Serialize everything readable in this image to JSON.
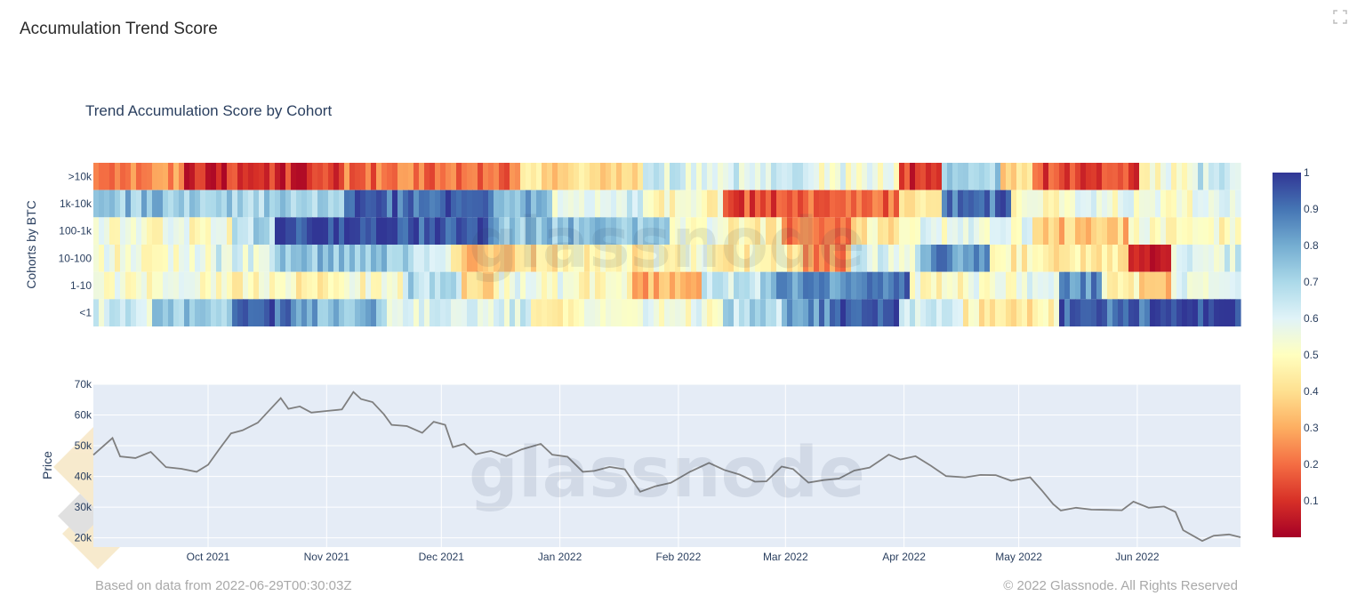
{
  "page": {
    "title": "Accumulation Trend Score",
    "footer_left": "Based on data from 2022-06-29T00:30:03Z",
    "footer_right": "© 2022 Glassnode. All Rights Reserved",
    "watermark": "glassnode",
    "expand_icon": "expand-icon"
  },
  "colors": {
    "panel_bg": "#e5ecf6",
    "grid": "#ffffff",
    "price_line": "#7f7f7f",
    "colorscale": [
      "#a50026",
      "#d73027",
      "#f46d43",
      "#fdae61",
      "#fee090",
      "#ffffbf",
      "#e0f3f8",
      "#abd9e9",
      "#74add1",
      "#4575b4",
      "#313695"
    ],
    "logo_diamonds": "#f5deb3"
  },
  "chart_data": [
    {
      "type": "heatmap",
      "title": "Trend Accumulation Score by Cohort",
      "ylabel": "Cohorts by BTC",
      "rows": [
        ">10k",
        "1k-10k",
        "100-1k",
        "10-100",
        "1-10",
        "<1"
      ],
      "x_start": "2021-09-01",
      "x_end": "2022-06-28",
      "zmin": 0,
      "zmax": 1,
      "colorbar_ticks": [
        "1",
        "0.9",
        "0.8",
        "0.7",
        "0.6",
        "0.5",
        "0.4",
        "0.3",
        "0.2",
        "0.1"
      ],
      "segments": [
        [
          [
            0.08,
            0.25
          ],
          [
            0.22,
            0.1
          ],
          [
            0.37,
            0.2
          ],
          [
            0.48,
            0.4
          ],
          [
            0.62,
            0.6
          ],
          [
            0.7,
            0.55
          ],
          [
            0.74,
            0.1
          ],
          [
            0.79,
            0.7
          ],
          [
            0.82,
            0.4
          ],
          [
            0.91,
            0.15
          ],
          [
            0.96,
            0.52
          ],
          [
            1.0,
            0.65
          ]
        ],
        [
          [
            0.1,
            0.75
          ],
          [
            0.22,
            0.7
          ],
          [
            0.35,
            0.92
          ],
          [
            0.4,
            0.8
          ],
          [
            0.48,
            0.6
          ],
          [
            0.55,
            0.5
          ],
          [
            0.62,
            0.15
          ],
          [
            0.7,
            0.2
          ],
          [
            0.74,
            0.4
          ],
          [
            0.8,
            0.9
          ],
          [
            0.85,
            0.5
          ],
          [
            1.0,
            0.55
          ]
        ],
        [
          [
            0.12,
            0.52
          ],
          [
            0.16,
            0.7
          ],
          [
            0.28,
            0.98
          ],
          [
            0.35,
            0.95
          ],
          [
            0.43,
            0.75
          ],
          [
            0.5,
            0.75
          ],
          [
            0.55,
            0.55
          ],
          [
            0.6,
            0.45
          ],
          [
            0.66,
            0.2
          ],
          [
            0.72,
            0.45
          ],
          [
            0.82,
            0.55
          ],
          [
            0.9,
            0.35
          ],
          [
            1.0,
            0.5
          ]
        ],
        [
          [
            0.1,
            0.52
          ],
          [
            0.16,
            0.6
          ],
          [
            0.28,
            0.75
          ],
          [
            0.31,
            0.6
          ],
          [
            0.36,
            0.35
          ],
          [
            0.4,
            0.4
          ],
          [
            0.48,
            0.45
          ],
          [
            0.55,
            0.5
          ],
          [
            0.62,
            0.45
          ],
          [
            0.66,
            0.25
          ],
          [
            0.72,
            0.6
          ],
          [
            0.78,
            0.85
          ],
          [
            0.9,
            0.45
          ],
          [
            0.94,
            0.1
          ],
          [
            1.0,
            0.6
          ]
        ],
        [
          [
            0.12,
            0.52
          ],
          [
            0.22,
            0.48
          ],
          [
            0.27,
            0.5
          ],
          [
            0.32,
            0.7
          ],
          [
            0.35,
            0.35
          ],
          [
            0.42,
            0.55
          ],
          [
            0.47,
            0.5
          ],
          [
            0.53,
            0.3
          ],
          [
            0.58,
            0.65
          ],
          [
            0.62,
            0.8
          ],
          [
            0.68,
            0.85
          ],
          [
            0.71,
            0.92
          ],
          [
            0.76,
            0.5
          ],
          [
            0.84,
            0.55
          ],
          [
            0.88,
            0.85
          ],
          [
            0.91,
            0.5
          ],
          [
            0.94,
            0.3
          ],
          [
            1.0,
            0.6
          ]
        ],
        [
          [
            0.05,
            0.62
          ],
          [
            0.12,
            0.75
          ],
          [
            0.17,
            0.92
          ],
          [
            0.25,
            0.78
          ],
          [
            0.38,
            0.6
          ],
          [
            0.48,
            0.5
          ],
          [
            0.55,
            0.55
          ],
          [
            0.6,
            0.68
          ],
          [
            0.64,
            0.85
          ],
          [
            0.7,
            0.97
          ],
          [
            0.76,
            0.65
          ],
          [
            0.84,
            0.45
          ],
          [
            0.92,
            0.92
          ],
          [
            1.0,
            0.98
          ]
        ]
      ]
    },
    {
      "type": "line",
      "ylabel": "Price",
      "ylim": [
        17000,
        70000
      ],
      "yticks": [
        "70k",
        "60k",
        "50k",
        "40k",
        "30k",
        "20k"
      ],
      "ytick_values": [
        70000,
        60000,
        50000,
        40000,
        30000,
        20000
      ],
      "xticks": [
        "Oct 2021",
        "Nov 2021",
        "Dec 2021",
        "Jan 2022",
        "Feb 2022",
        "Mar 2022",
        "Apr 2022",
        "May 2022",
        "Jun 2022"
      ],
      "xtick_dates": [
        "2021-10-01",
        "2021-11-01",
        "2021-12-01",
        "2022-01-01",
        "2022-02-01",
        "2022-03-01",
        "2022-04-01",
        "2022-05-01",
        "2022-06-01"
      ],
      "x_start": "2021-09-01",
      "x_end": "2022-06-28",
      "points": [
        [
          "2021-09-01",
          47000
        ],
        [
          "2021-09-06",
          52500
        ],
        [
          "2021-09-08",
          46500
        ],
        [
          "2021-09-12",
          46000
        ],
        [
          "2021-09-16",
          48000
        ],
        [
          "2021-09-20",
          43000
        ],
        [
          "2021-09-24",
          42500
        ],
        [
          "2021-09-28",
          41500
        ],
        [
          "2021-10-01",
          43800
        ],
        [
          "2021-10-04",
          49000
        ],
        [
          "2021-10-07",
          54000
        ],
        [
          "2021-10-10",
          55000
        ],
        [
          "2021-10-14",
          57500
        ],
        [
          "2021-10-17",
          61500
        ],
        [
          "2021-10-20",
          65500
        ],
        [
          "2021-10-22",
          62000
        ],
        [
          "2021-10-25",
          62800
        ],
        [
          "2021-10-28",
          60800
        ],
        [
          "2021-11-01",
          61300
        ],
        [
          "2021-11-05",
          61800
        ],
        [
          "2021-11-08",
          67500
        ],
        [
          "2021-11-10",
          65200
        ],
        [
          "2021-11-13",
          64200
        ],
        [
          "2021-11-16",
          60200
        ],
        [
          "2021-11-18",
          56800
        ],
        [
          "2021-11-22",
          56400
        ],
        [
          "2021-11-26",
          54200
        ],
        [
          "2021-11-29",
          57800
        ],
        [
          "2021-12-02",
          56800
        ],
        [
          "2021-12-04",
          49500
        ],
        [
          "2021-12-07",
          50600
        ],
        [
          "2021-12-10",
          47200
        ],
        [
          "2021-12-14",
          48300
        ],
        [
          "2021-12-18",
          46600
        ],
        [
          "2021-12-22",
          48800
        ],
        [
          "2021-12-27",
          50600
        ],
        [
          "2021-12-30",
          47100
        ],
        [
          "2022-01-03",
          46400
        ],
        [
          "2022-01-07",
          41500
        ],
        [
          "2022-01-10",
          41800
        ],
        [
          "2022-01-14",
          43100
        ],
        [
          "2022-01-18",
          42300
        ],
        [
          "2022-01-22",
          35000
        ],
        [
          "2022-01-26",
          36800
        ],
        [
          "2022-01-30",
          37900
        ],
        [
          "2022-02-04",
          41500
        ],
        [
          "2022-02-09",
          44400
        ],
        [
          "2022-02-13",
          42100
        ],
        [
          "2022-02-17",
          40600
        ],
        [
          "2022-02-21",
          38300
        ],
        [
          "2022-02-24",
          38400
        ],
        [
          "2022-02-28",
          43200
        ],
        [
          "2022-03-03",
          42400
        ],
        [
          "2022-03-07",
          38000
        ],
        [
          "2022-03-11",
          38800
        ],
        [
          "2022-03-15",
          39300
        ],
        [
          "2022-03-19",
          41900
        ],
        [
          "2022-03-23",
          42900
        ],
        [
          "2022-03-28",
          47100
        ],
        [
          "2022-03-31",
          45500
        ],
        [
          "2022-04-04",
          46600
        ],
        [
          "2022-04-08",
          43500
        ],
        [
          "2022-04-12",
          40100
        ],
        [
          "2022-04-17",
          39700
        ],
        [
          "2022-04-21",
          40500
        ],
        [
          "2022-04-25",
          40400
        ],
        [
          "2022-04-29",
          38600
        ],
        [
          "2022-05-04",
          39700
        ],
        [
          "2022-05-07",
          35500
        ],
        [
          "2022-05-10",
          31000
        ],
        [
          "2022-05-12",
          28900
        ],
        [
          "2022-05-16",
          29800
        ],
        [
          "2022-05-20",
          29200
        ],
        [
          "2022-05-24",
          29100
        ],
        [
          "2022-05-28",
          29000
        ],
        [
          "2022-05-31",
          31800
        ],
        [
          "2022-06-04",
          29800
        ],
        [
          "2022-06-08",
          30200
        ],
        [
          "2022-06-11",
          28400
        ],
        [
          "2022-06-13",
          22500
        ],
        [
          "2022-06-16",
          20400
        ],
        [
          "2022-06-18",
          19000
        ],
        [
          "2022-06-21",
          20700
        ],
        [
          "2022-06-25",
          21100
        ],
        [
          "2022-06-28",
          20200
        ]
      ]
    }
  ]
}
